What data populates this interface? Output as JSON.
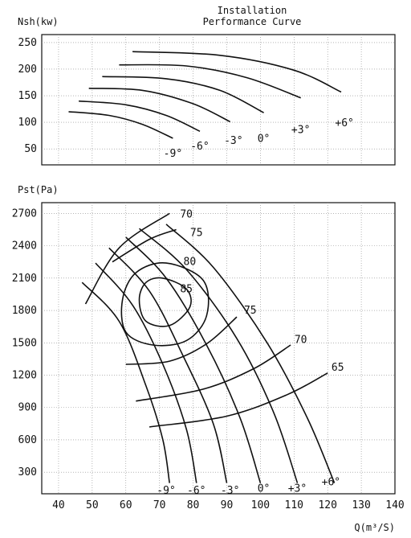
{
  "header": {
    "line1": "Installation",
    "line2": "Performance Curve"
  },
  "chart_data": [
    {
      "type": "line",
      "ylabel": "Nsh(kw)",
      "xlim": [
        35,
        140
      ],
      "ylim": [
        20,
        265
      ],
      "yticks": [
        50,
        100,
        150,
        200,
        250
      ],
      "grid": true,
      "series": [
        {
          "name": "-9°",
          "points": [
            [
              43,
              120
            ],
            [
              55,
              113
            ],
            [
              65,
              96
            ],
            [
              74,
              70
            ]
          ]
        },
        {
          "name": "-6°",
          "points": [
            [
              46,
              140
            ],
            [
              60,
              133
            ],
            [
              72,
              113
            ],
            [
              82,
              83
            ]
          ]
        },
        {
          "name": "-3°",
          "points": [
            [
              49,
              164
            ],
            [
              65,
              160
            ],
            [
              80,
              135
            ],
            [
              91,
              101
            ]
          ]
        },
        {
          "name": "0°",
          "points": [
            [
              53,
              186
            ],
            [
              72,
              182
            ],
            [
              88,
              160
            ],
            [
              101,
              118
            ]
          ]
        },
        {
          "name": "+3°",
          "points": [
            [
              58,
              208
            ],
            [
              78,
              206
            ],
            [
              96,
              184
            ],
            [
              112,
              146
            ]
          ]
        },
        {
          "name": "+6°",
          "points": [
            [
              62,
              233
            ],
            [
              88,
              226
            ],
            [
              110,
              198
            ],
            [
              124,
              157
            ]
          ]
        }
      ],
      "labels": [
        {
          "text": "-9°",
          "x": 74,
          "y": 41
        },
        {
          "text": "-6°",
          "x": 82,
          "y": 55
        },
        {
          "text": "-3°",
          "x": 92,
          "y": 65
        },
        {
          "text": "0°",
          "x": 101,
          "y": 69
        },
        {
          "text": "+3°",
          "x": 112,
          "y": 86
        },
        {
          "text": "+6°",
          "x": 125,
          "y": 99
        }
      ]
    },
    {
      "type": "line",
      "ylabel": "Pst(Pa)",
      "xlabel": "Q(m³/S)",
      "xlim": [
        35,
        140
      ],
      "ylim": [
        100,
        2800
      ],
      "xticks": [
        40,
        50,
        60,
        70,
        80,
        90,
        100,
        110,
        120,
        130,
        140
      ],
      "yticks": [
        300,
        600,
        900,
        1200,
        1500,
        1800,
        2100,
        2400,
        2700
      ],
      "grid": true,
      "blade_angle_curves": [
        {
          "name": "-9°",
          "points": [
            [
              47,
              2060
            ],
            [
              58,
              1700
            ],
            [
              66,
              1100
            ],
            [
              71,
              600
            ],
            [
              73,
              200
            ]
          ]
        },
        {
          "name": "-6°",
          "points": [
            [
              51,
              2240
            ],
            [
              62,
              1850
            ],
            [
              71,
              1300
            ],
            [
              78,
              700
            ],
            [
              81,
              200
            ]
          ]
        },
        {
          "name": "-3°",
          "points": [
            [
              55,
              2380
            ],
            [
              67,
              1980
            ],
            [
              77,
              1380
            ],
            [
              86,
              750
            ],
            [
              90,
              200
            ]
          ]
        },
        {
          "name": "0°",
          "points": [
            [
              60,
              2480
            ],
            [
              72,
              2100
            ],
            [
              84,
              1480
            ],
            [
              94,
              800
            ],
            [
              100,
              200
            ]
          ]
        },
        {
          "name": "+3°",
          "points": [
            [
              64,
              2560
            ],
            [
              78,
              2180
            ],
            [
              93,
              1540
            ],
            [
              104,
              850
            ],
            [
              111,
              200
            ]
          ]
        },
        {
          "name": "+6°",
          "points": [
            [
              72,
              2600
            ],
            [
              86,
              2200
            ],
            [
              102,
              1500
            ],
            [
              114,
              800
            ],
            [
              122,
              200
            ]
          ]
        }
      ],
      "efficiency_contours": [
        {
          "name": "70",
          "points": [
            [
              48,
              1860
            ],
            [
              58,
              2380
            ],
            [
              73,
              2700
            ]
          ]
        },
        {
          "name": "75",
          "points": [
            [
              56,
              2250
            ],
            [
              67,
              2460
            ],
            [
              75,
              2550
            ]
          ]
        },
        {
          "name": "80",
          "closed": true,
          "points": [
            [
              72,
              2240
            ],
            [
              83,
              2080
            ],
            [
              84,
              1750
            ],
            [
              78,
              1520
            ],
            [
              68,
              1480
            ],
            [
              60,
              1600
            ],
            [
              59,
              1900
            ],
            [
              63,
              2150
            ]
          ]
        },
        {
          "name": "85",
          "closed": true,
          "points": [
            [
              71,
              2100
            ],
            [
              78,
              2000
            ],
            [
              79,
              1830
            ],
            [
              73,
              1660
            ],
            [
              66,
              1700
            ],
            [
              64,
              1900
            ],
            [
              66,
              2060
            ]
          ]
        },
        {
          "name": "75",
          "points": [
            [
              60,
              1300
            ],
            [
              73,
              1330
            ],
            [
              84,
              1490
            ],
            [
              93,
              1740
            ]
          ]
        },
        {
          "name": "70",
          "points": [
            [
              63,
              960
            ],
            [
              83,
              1070
            ],
            [
              98,
              1260
            ],
            [
              109,
              1480
            ]
          ]
        },
        {
          "name": "65",
          "points": [
            [
              67,
              720
            ],
            [
              90,
              820
            ],
            [
              108,
              1020
            ],
            [
              120,
              1220
            ]
          ]
        }
      ],
      "labels": [
        {
          "text": "70",
          "x": 78,
          "y": 2690
        },
        {
          "text": "75",
          "x": 81,
          "y": 2520
        },
        {
          "text": "80",
          "x": 79,
          "y": 2250
        },
        {
          "text": "85",
          "x": 78,
          "y": 2000
        },
        {
          "text": "75",
          "x": 97,
          "y": 1800
        },
        {
          "text": "70",
          "x": 112,
          "y": 1530
        },
        {
          "text": "65",
          "x": 123,
          "y": 1270
        },
        {
          "text": "-9°",
          "x": 72,
          "y": 130
        },
        {
          "text": "-6°",
          "x": 81,
          "y": 130
        },
        {
          "text": "-3°",
          "x": 91,
          "y": 130
        },
        {
          "text": "0°",
          "x": 101,
          "y": 150
        },
        {
          "text": "+3°",
          "x": 111,
          "y": 150
        },
        {
          "text": "+6°",
          "x": 121,
          "y": 210
        }
      ]
    }
  ]
}
